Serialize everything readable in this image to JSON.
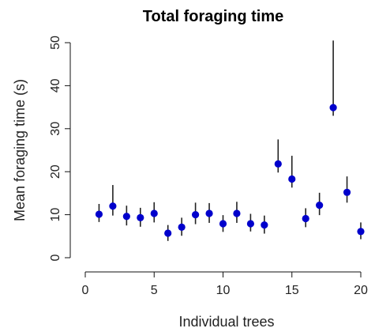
{
  "chart_data": {
    "type": "scatter",
    "title": "Total foraging time",
    "xlabel": "Individual trees",
    "ylabel": "Mean foraging time (s)",
    "xlim": [
      0,
      20
    ],
    "ylim": [
      0,
      50
    ],
    "x_ticks": [
      0,
      5,
      10,
      15,
      20
    ],
    "y_ticks": [
      0,
      10,
      20,
      30,
      40,
      50
    ],
    "grid": false,
    "point_color": "#0000CC",
    "errorbar_color": "#222222",
    "points": [
      {
        "x": 1,
        "y": 10.1,
        "low": 8.3,
        "high": 12.5
      },
      {
        "x": 2,
        "y": 12.0,
        "low": 9.8,
        "high": 16.9
      },
      {
        "x": 3,
        "y": 9.6,
        "low": 7.5,
        "high": 12.1
      },
      {
        "x": 4,
        "y": 9.3,
        "low": 7.2,
        "high": 11.6
      },
      {
        "x": 5,
        "y": 10.3,
        "low": 8.2,
        "high": 12.9
      },
      {
        "x": 6,
        "y": 5.7,
        "low": 3.9,
        "high": 7.6
      },
      {
        "x": 7,
        "y": 7.1,
        "low": 5.1,
        "high": 9.3
      },
      {
        "x": 8,
        "y": 10.0,
        "low": 7.8,
        "high": 12.8
      },
      {
        "x": 9,
        "y": 10.3,
        "low": 8.1,
        "high": 12.7
      },
      {
        "x": 10,
        "y": 7.9,
        "low": 6.0,
        "high": 9.9
      },
      {
        "x": 11,
        "y": 10.3,
        "low": 8.1,
        "high": 13.0
      },
      {
        "x": 12,
        "y": 7.9,
        "low": 6.1,
        "high": 10.2
      },
      {
        "x": 13,
        "y": 7.6,
        "low": 5.6,
        "high": 9.8
      },
      {
        "x": 14,
        "y": 21.8,
        "low": 19.8,
        "high": 27.5
      },
      {
        "x": 15,
        "y": 18.3,
        "low": 16.3,
        "high": 23.7
      },
      {
        "x": 16,
        "y": 9.1,
        "low": 7.1,
        "high": 11.5
      },
      {
        "x": 17,
        "y": 12.2,
        "low": 9.9,
        "high": 15.1
      },
      {
        "x": 18,
        "y": 34.9,
        "low": 33.0,
        "high": 50.5
      },
      {
        "x": 19,
        "y": 15.2,
        "low": 12.8,
        "high": 18.9
      },
      {
        "x": 20,
        "y": 6.1,
        "low": 4.3,
        "high": 8.2
      }
    ]
  }
}
